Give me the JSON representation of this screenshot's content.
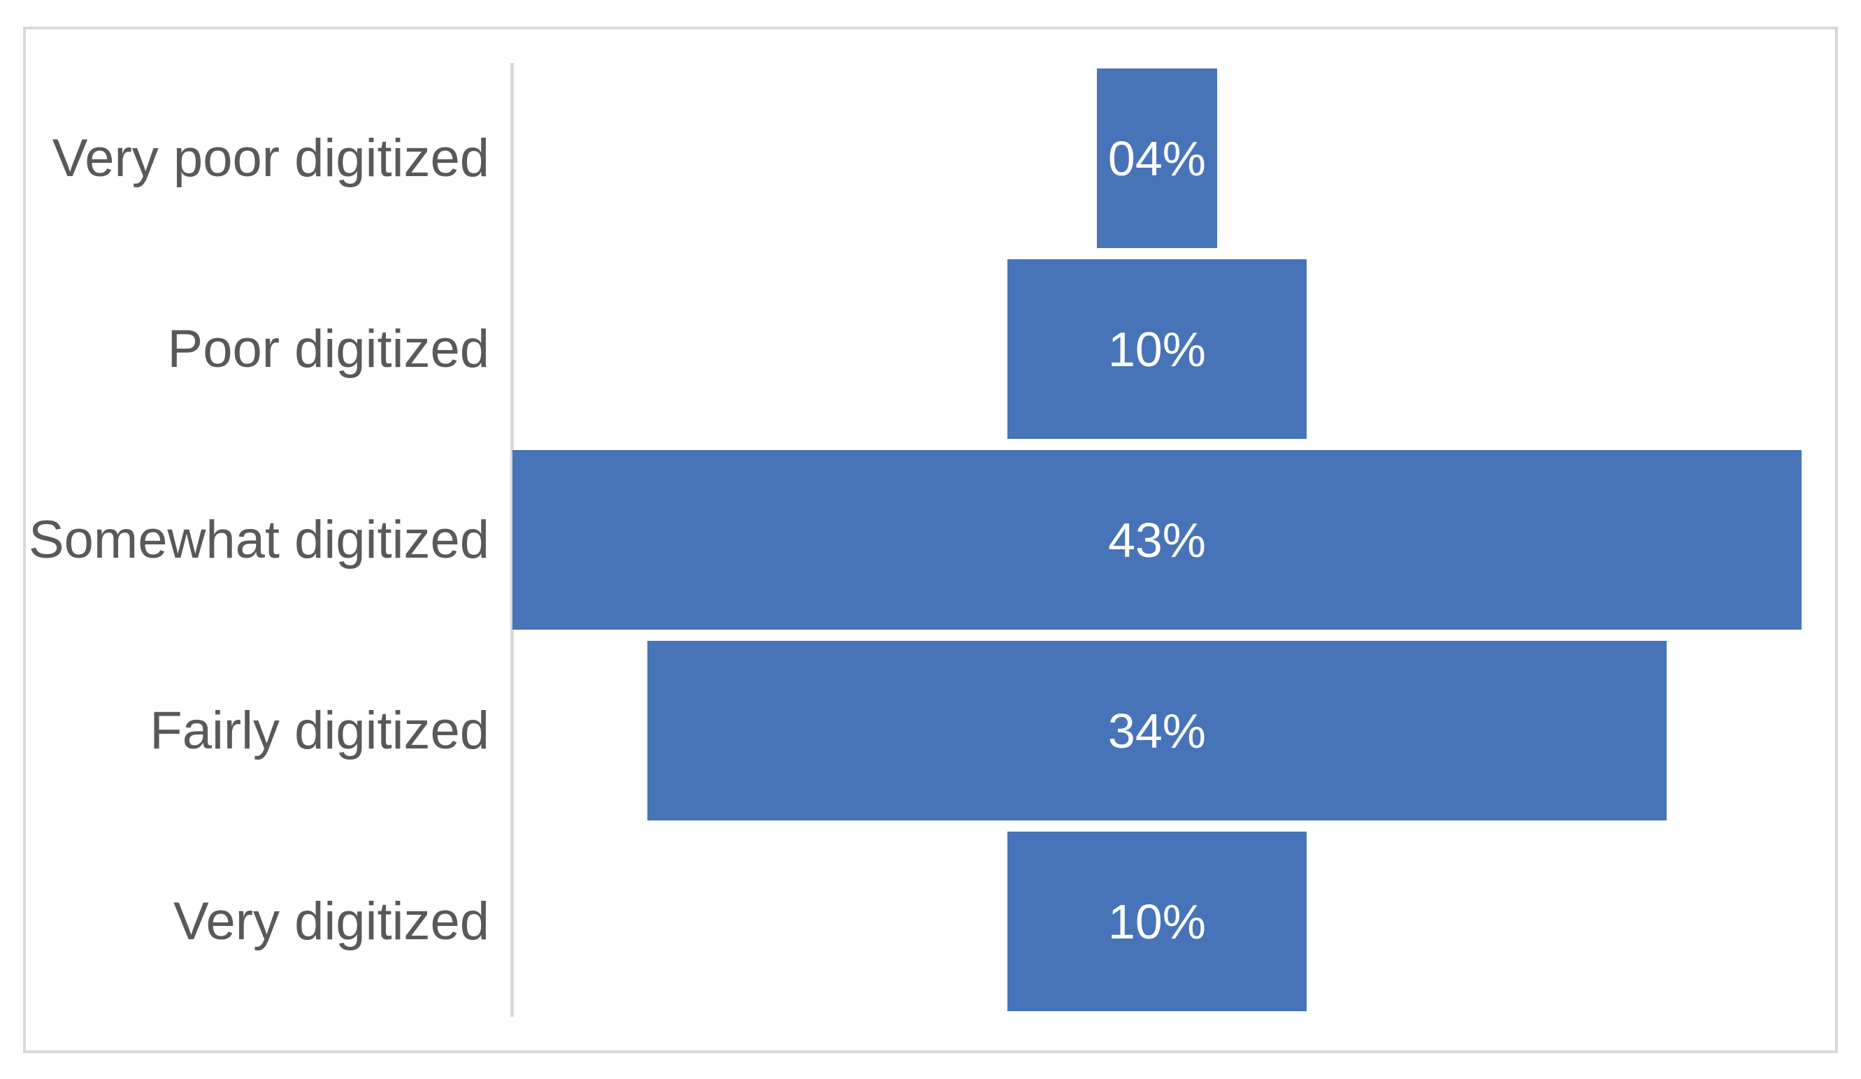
{
  "chart_data": {
    "type": "bar",
    "subtype": "centered-funnel",
    "orientation": "horizontal",
    "title": "",
    "xlabel": "",
    "ylabel": "",
    "categories": [
      "Very poor digitized",
      "Poor digitized",
      "Somewhat digitized",
      "Fairly digitized",
      "Very digitized"
    ],
    "values": [
      4,
      10,
      43,
      34,
      10
    ],
    "display_labels": [
      "04%",
      "10%",
      "43%",
      "34%",
      "10%"
    ],
    "value_unit": "%",
    "max_value": 43,
    "grid": false,
    "legend": "none",
    "bars_centered_on_common_axis": true,
    "colors": {
      "bar_fill": "#4773B8",
      "category_label": "#595959",
      "value_label": "#FFFFFF",
      "axis_line": "#D9D9D9",
      "frame_border": "#D9D9D9",
      "background": "#FFFFFF"
    }
  }
}
